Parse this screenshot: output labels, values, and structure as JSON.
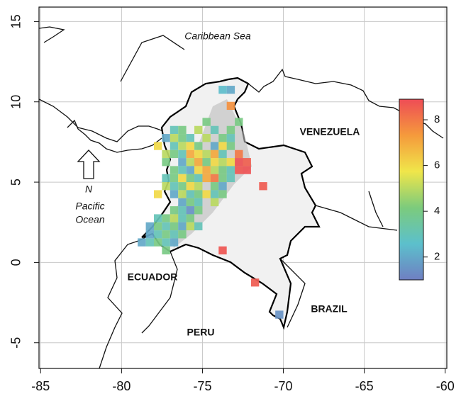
{
  "chart_data": {
    "type": "heatmap",
    "xlim": [
      -85.1,
      -59.9
    ],
    "ylim": [
      -6.6,
      15.9
    ],
    "xticks": [
      -85,
      -80,
      -75,
      -70,
      -65,
      -60
    ],
    "yticks": [
      -5,
      0,
      5,
      10,
      15
    ],
    "grid": true,
    "clim": [
      1,
      8.9
    ],
    "cticks": [
      2,
      4,
      6,
      8
    ],
    "colormap": [
      "#6f7fc2",
      "#5cc0cc",
      "#7ccb7c",
      "#f0e64a",
      "#f59a3c",
      "#ee4c56"
    ],
    "annotations": {
      "caribbean_sea": "Caribbean Sea",
      "venezuela": "VENEZUELA",
      "ecuador": "ECUADOR",
      "peru": "PERU",
      "brazil": "BRAZIL",
      "north": "N",
      "pacific_ocean": [
        "Pacific",
        "Ocean"
      ]
    },
    "cells": {
      "lon": [
        -73.75,
        -73.25,
        -73.25,
        -74.75,
        -72.75,
        -76.75,
        -76.25,
        -75.25,
        -74.25,
        -73.25,
        -77.25,
        -76.75,
        -76.25,
        -75.75,
        -74.75,
        -73.75,
        -73.25,
        -77.75,
        -76.75,
        -76.25,
        -75.75,
        -75.25,
        -74.25,
        -73.75,
        -73.25,
        -77.25,
        -76.75,
        -76.25,
        -75.75,
        -75.25,
        -74.75,
        -74.25,
        -73.75,
        -72.75,
        -77.25,
        -76.25,
        -75.75,
        -75.25,
        -74.75,
        -74.25,
        -73.75,
        -73.25,
        -72.75,
        -72.25,
        -76.75,
        -76.25,
        -75.75,
        -75.25,
        -74.75,
        -74.25,
        -73.75,
        -73.25,
        -72.75,
        -72.25,
        -77.25,
        -76.75,
        -76.25,
        -75.75,
        -75.25,
        -74.75,
        -74.25,
        -73.75,
        -73.25,
        -77.25,
        -76.75,
        -76.25,
        -75.75,
        -75.25,
        -74.25,
        -73.75,
        -71.25,
        -77.75,
        -76.75,
        -76.25,
        -75.75,
        -75.25,
        -74.75,
        -74.25,
        -73.75,
        -76.25,
        -75.75,
        -75.25,
        -74.25,
        -76.75,
        -76.25,
        -75.75,
        -75.25,
        -77.75,
        -77.25,
        -76.75,
        -76.25,
        -75.75,
        -78.25,
        -77.75,
        -77.25,
        -76.75,
        -76.25,
        -75.75,
        -75.25,
        -78.25,
        -77.75,
        -77.25,
        -76.75,
        -76.25,
        -78.75,
        -78.25,
        -77.75,
        -77.25,
        -76.75,
        -77.25,
        -73.75,
        -71.75,
        -70.25
      ],
      "lat": [
        10.75,
        10.75,
        9.75,
        8.75,
        8.75,
        8.25,
        8.25,
        8.25,
        8.25,
        8.25,
        7.75,
        7.75,
        7.75,
        7.75,
        7.75,
        7.75,
        7.75,
        7.25,
        7.25,
        7.25,
        7.25,
        7.25,
        7.25,
        7.25,
        7.25,
        6.75,
        6.75,
        6.75,
        6.75,
        6.75,
        6.75,
        6.75,
        6.75,
        6.75,
        6.25,
        6.25,
        6.25,
        6.25,
        6.25,
        6.25,
        6.25,
        6.25,
        6.25,
        6.25,
        5.75,
        5.75,
        5.75,
        5.75,
        5.75,
        5.75,
        5.75,
        5.75,
        5.75,
        5.75,
        5.25,
        5.25,
        5.25,
        5.25,
        5.25,
        5.25,
        5.25,
        5.25,
        5.25,
        4.75,
        4.75,
        4.75,
        4.75,
        4.75,
        4.75,
        4.75,
        4.75,
        4.25,
        4.25,
        4.25,
        4.25,
        4.25,
        4.25,
        4.25,
        4.25,
        3.75,
        3.75,
        3.75,
        3.75,
        3.25,
        3.25,
        3.25,
        3.25,
        2.75,
        2.75,
        2.75,
        2.75,
        2.75,
        2.25,
        2.25,
        2.25,
        2.25,
        2.25,
        2.25,
        2.25,
        1.75,
        1.75,
        1.75,
        1.75,
        1.75,
        1.25,
        1.25,
        1.25,
        1.25,
        1.25,
        0.75,
        0.75,
        -1.25,
        -3.25
      ],
      "values": [
        2.5,
        2,
        7.5,
        4,
        4,
        3,
        4,
        5,
        3,
        4,
        2,
        5,
        4,
        3,
        5,
        4,
        3,
        6,
        3,
        5,
        6,
        4,
        2,
        6,
        4,
        5,
        4,
        3,
        7,
        6,
        5,
        7,
        3,
        8,
        4,
        2,
        5,
        7,
        4,
        6,
        5,
        6,
        8.8,
        8.5,
        4,
        3,
        2,
        6,
        7,
        5,
        4,
        3,
        8.7,
        8.8,
        3,
        4,
        6,
        4,
        3,
        7,
        8,
        4,
        3,
        5,
        3,
        4,
        6,
        5,
        4,
        2,
        8.6,
        6,
        2,
        5,
        3,
        4,
        6,
        3,
        4,
        2,
        4,
        3,
        5,
        4,
        3,
        1.5,
        4,
        3,
        4,
        5,
        3,
        4,
        2,
        4,
        3,
        4,
        2,
        5,
        3,
        2,
        3,
        4,
        3,
        4,
        2,
        3,
        4,
        3,
        2,
        4,
        8.7,
        8.6,
        1.5
      ]
    }
  }
}
